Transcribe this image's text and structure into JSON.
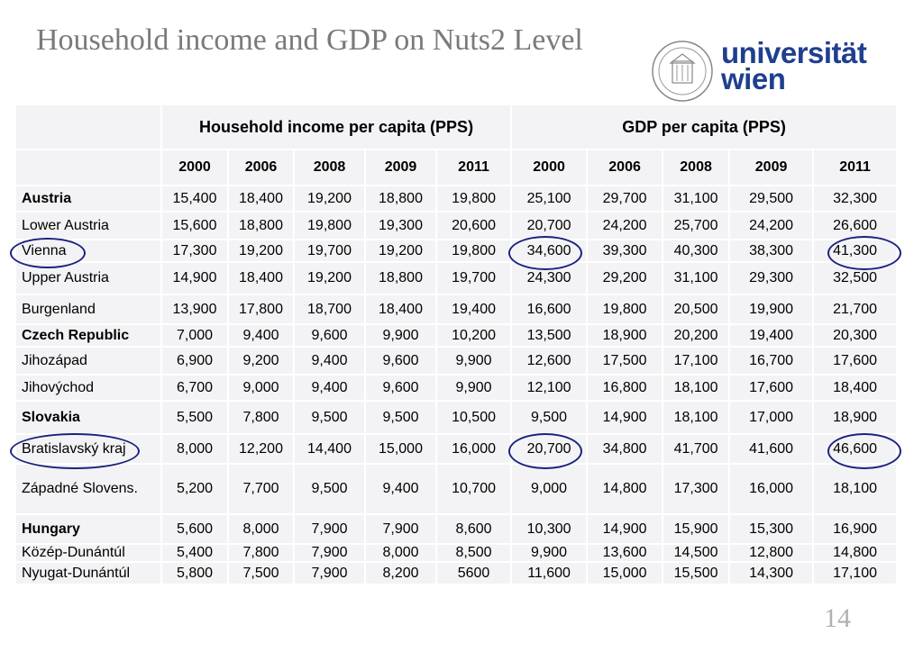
{
  "slide": {
    "title": "Household income and GDP on Nuts2 Level",
    "page_number": "14"
  },
  "logo": {
    "line1": "universität",
    "line2": "wien",
    "seal_icon": "university-seal-icon",
    "color": "#1f3f8f"
  },
  "table": {
    "group_headers": [
      "Household income per capita (PPS)",
      "GDP per capita (PPS)"
    ],
    "years": [
      "2000",
      "2006",
      "2008",
      "2009",
      "2011",
      "2000",
      "2006",
      "2008",
      "2009",
      "2011"
    ],
    "rows": [
      {
        "region": "Austria",
        "country": true,
        "values": [
          "15,400",
          "18,400",
          "19,200",
          "18,800",
          "19,800",
          "25,100",
          "29,700",
          "31,100",
          "29,500",
          "32,300"
        ]
      },
      {
        "region": "Lower Austria",
        "country": false,
        "values": [
          "15,600",
          "18,800",
          "19,800",
          "19,300",
          "20,600",
          "20,700",
          "24,200",
          "25,700",
          "24,200",
          "26,600"
        ]
      },
      {
        "region": "Vienna",
        "country": false,
        "values": [
          "17,300",
          "19,200",
          "19,700",
          "19,200",
          "19,800",
          "34,600",
          "39,300",
          "40,300",
          "38,300",
          "41,300"
        ]
      },
      {
        "region": "Upper Austria",
        "country": false,
        "values": [
          "14,900",
          "18,400",
          "19,200",
          "18,800",
          "19,700",
          "24,300",
          "29,200",
          "31,100",
          "29,300",
          "32,500"
        ]
      },
      {
        "region": "Burgenland",
        "country": false,
        "values": [
          "13,900",
          "17,800",
          "18,700",
          "18,400",
          "19,400",
          "16,600",
          "19,800",
          "20,500",
          "19,900",
          "21,700"
        ]
      },
      {
        "region": "Czech Republic",
        "country": true,
        "values": [
          "7,000",
          "9,400",
          "9,600",
          "9,900",
          "10,200",
          "13,500",
          "18,900",
          "20,200",
          "19,400",
          "20,300"
        ]
      },
      {
        "region": "Jihozápad",
        "country": false,
        "values": [
          "6,900",
          "9,200",
          "9,400",
          "9,600",
          "9,900",
          "12,600",
          "17,500",
          "17,100",
          "16,700",
          "17,600"
        ]
      },
      {
        "region": "Jihovýchod",
        "country": false,
        "values": [
          "6,700",
          "9,000",
          "9,400",
          "9,600",
          "9,900",
          "12,100",
          "16,800",
          "18,100",
          "17,600",
          "18,400"
        ]
      },
      {
        "region": "Slovakia",
        "country": true,
        "values": [
          "5,500",
          "7,800",
          "9,500",
          "9,500",
          "10,500",
          "9,500",
          "14,900",
          "18,100",
          "17,000",
          "18,900"
        ]
      },
      {
        "region": "Bratislavský kraj",
        "country": false,
        "values": [
          "8,000",
          "12,200",
          "14,400",
          "15,000",
          "16,000",
          "20,700",
          "34,800",
          "41,700",
          "41,600",
          "46,600"
        ]
      },
      {
        "region": "Západné Slovens.",
        "country": false,
        "values": [
          "5,200",
          "7,700",
          "9,500",
          "9,400",
          "10,700",
          "9,000",
          "14,800",
          "17,300",
          "16,000",
          "18,100"
        ]
      },
      {
        "region": "Hungary",
        "country": true,
        "values": [
          "5,600",
          "8,000",
          "7,900",
          "7,900",
          "8,600",
          "10,300",
          "14,900",
          "15,900",
          "15,300",
          "16,900"
        ]
      },
      {
        "region": "Közép-Dunántúl",
        "country": false,
        "values": [
          "5,400",
          "7,800",
          "7,900",
          "8,000",
          "8,500",
          "9,900",
          "13,600",
          "14,500",
          "12,800",
          "14,800"
        ]
      },
      {
        "region": "Nyugat-Dunántúl",
        "country": false,
        "values": [
          "5,800",
          "7,500",
          "7,900",
          "8,200",
          "5600",
          "11,600",
          "15,000",
          "15,500",
          "14,300",
          "17,100"
        ]
      }
    ]
  },
  "highlight_color": "#1a237e"
}
